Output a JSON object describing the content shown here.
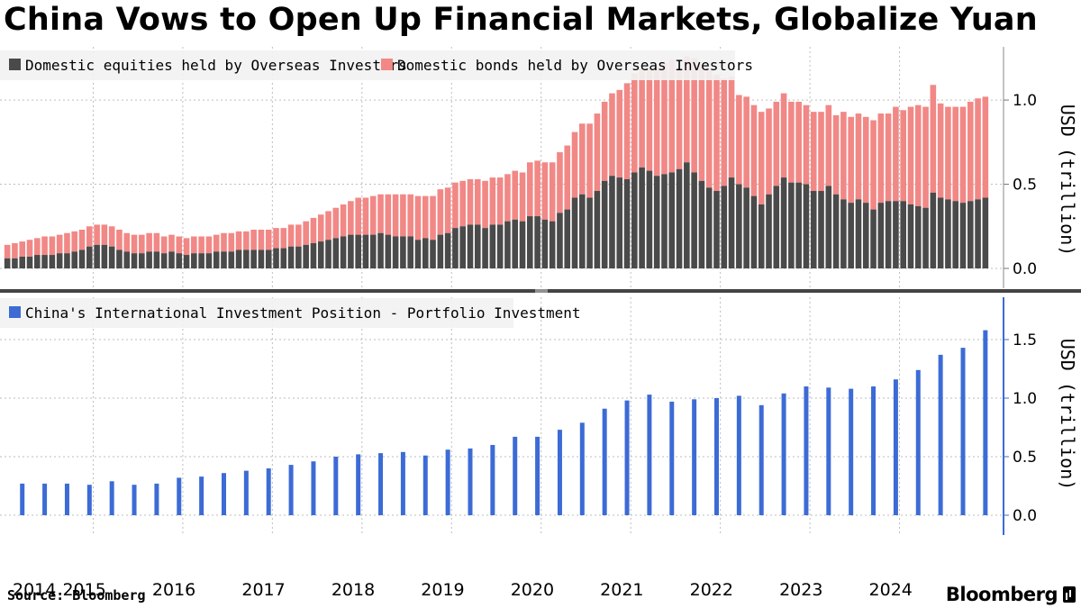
{
  "title": "China Vows to Open Up Financial Markets, Globalize Yuan",
  "source": "Source: Bloomberg",
  "brand": "Bloomberg",
  "colors": {
    "equities": "#4a4a4a",
    "bonds": "#f18886",
    "portfolio": "#3c6bd6",
    "grid": "#bdbdbd",
    "axis": "#3c6bd6"
  },
  "chart_data": [
    {
      "type": "bar",
      "stacked": true,
      "frequency": "monthly",
      "x_start": "2014-01",
      "x_end": "2024-12",
      "ylabel": "USD (trillion)",
      "ylim": [
        0,
        1.3
      ],
      "yticks": [
        "0.0",
        "0.5",
        "1.0"
      ],
      "ytick_values": [
        0.0,
        0.5,
        1.0
      ],
      "grid": true,
      "legend": "top-left",
      "series": [
        {
          "name": "Domestic equities held by Overseas Investors",
          "values": [
            0.06,
            0.06,
            0.07,
            0.07,
            0.08,
            0.08,
            0.08,
            0.09,
            0.09,
            0.1,
            0.11,
            0.13,
            0.14,
            0.14,
            0.13,
            0.11,
            0.1,
            0.09,
            0.09,
            0.1,
            0.1,
            0.09,
            0.1,
            0.09,
            0.08,
            0.09,
            0.09,
            0.09,
            0.1,
            0.1,
            0.1,
            0.11,
            0.11,
            0.11,
            0.11,
            0.11,
            0.12,
            0.12,
            0.13,
            0.13,
            0.14,
            0.15,
            0.16,
            0.17,
            0.18,
            0.19,
            0.2,
            0.2,
            0.2,
            0.2,
            0.21,
            0.2,
            0.19,
            0.19,
            0.19,
            0.17,
            0.18,
            0.17,
            0.2,
            0.21,
            0.24,
            0.25,
            0.26,
            0.26,
            0.24,
            0.26,
            0.26,
            0.28,
            0.29,
            0.28,
            0.31,
            0.31,
            0.29,
            0.28,
            0.33,
            0.35,
            0.42,
            0.44,
            0.42,
            0.46,
            0.52,
            0.55,
            0.54,
            0.53,
            0.57,
            0.6,
            0.58,
            0.55,
            0.56,
            0.57,
            0.59,
            0.63,
            0.57,
            0.52,
            0.48,
            0.46,
            0.49,
            0.54,
            0.5,
            0.48,
            0.43,
            0.38,
            0.44,
            0.49,
            0.54,
            0.51,
            0.51,
            0.5,
            0.46,
            0.46,
            0.49,
            0.44,
            0.41,
            0.39,
            0.41,
            0.39,
            0.35,
            0.39,
            0.4,
            0.4,
            0.4,
            0.38,
            0.37,
            0.36,
            0.45,
            0.42,
            0.41,
            0.4,
            0.39,
            0.4,
            0.41,
            0.42
          ]
        },
        {
          "name": "Domestic bonds held by Overseas Investors",
          "values": [
            0.08,
            0.09,
            0.09,
            0.1,
            0.1,
            0.11,
            0.11,
            0.11,
            0.12,
            0.12,
            0.12,
            0.12,
            0.12,
            0.12,
            0.12,
            0.12,
            0.11,
            0.11,
            0.11,
            0.11,
            0.11,
            0.1,
            0.1,
            0.1,
            0.1,
            0.1,
            0.1,
            0.1,
            0.1,
            0.11,
            0.11,
            0.11,
            0.11,
            0.12,
            0.12,
            0.12,
            0.12,
            0.12,
            0.13,
            0.13,
            0.14,
            0.15,
            0.16,
            0.17,
            0.18,
            0.19,
            0.2,
            0.22,
            0.22,
            0.23,
            0.23,
            0.24,
            0.25,
            0.25,
            0.25,
            0.26,
            0.25,
            0.26,
            0.27,
            0.27,
            0.27,
            0.27,
            0.27,
            0.27,
            0.28,
            0.28,
            0.28,
            0.28,
            0.29,
            0.29,
            0.32,
            0.33,
            0.34,
            0.35,
            0.36,
            0.38,
            0.39,
            0.42,
            0.44,
            0.46,
            0.47,
            0.49,
            0.52,
            0.57,
            0.59,
            0.59,
            0.61,
            0.65,
            0.66,
            0.67,
            0.6,
            0.63,
            0.68,
            0.69,
            0.7,
            0.69,
            0.64,
            0.6,
            0.53,
            0.54,
            0.54,
            0.55,
            0.51,
            0.5,
            0.5,
            0.48,
            0.48,
            0.47,
            0.47,
            0.47,
            0.48,
            0.47,
            0.52,
            0.51,
            0.51,
            0.51,
            0.53,
            0.53,
            0.52,
            0.56,
            0.54,
            0.58,
            0.6,
            0.6,
            0.64,
            0.56,
            0.55,
            0.56,
            0.57,
            0.59,
            0.6,
            0.6
          ]
        }
      ]
    },
    {
      "type": "bar",
      "frequency": "quarterly",
      "x_start": "2014-Q1",
      "x_end": "2024-Q4",
      "ylabel": "USD (trillion)",
      "ylim": [
        0,
        1.75
      ],
      "yticks": [
        "0.0",
        "0.5",
        "1.0",
        "1.5"
      ],
      "ytick_values": [
        0.0,
        0.5,
        1.0,
        1.5
      ],
      "grid": true,
      "legend": "top-left",
      "series": [
        {
          "name": "China's International Investment Position - Portfolio Investment",
          "values": [
            0.27,
            0.27,
            0.27,
            0.26,
            0.29,
            0.26,
            0.27,
            0.32,
            0.33,
            0.36,
            0.38,
            0.4,
            0.43,
            0.46,
            0.5,
            0.52,
            0.53,
            0.54,
            0.51,
            0.56,
            0.57,
            0.6,
            0.67,
            0.67,
            0.73,
            0.79,
            0.91,
            0.98,
            1.03,
            0.97,
            0.99,
            1.0,
            1.02,
            0.94,
            1.04,
            1.1,
            1.09,
            1.08,
            1.1,
            1.16,
            1.24,
            1.37,
            1.43,
            1.58
          ]
        }
      ]
    }
  ],
  "x_axis": {
    "labels": [
      "2014",
      "2015",
      "2016",
      "2017",
      "2018",
      "2019",
      "2020",
      "2021",
      "2022",
      "2023",
      "2024"
    ]
  }
}
